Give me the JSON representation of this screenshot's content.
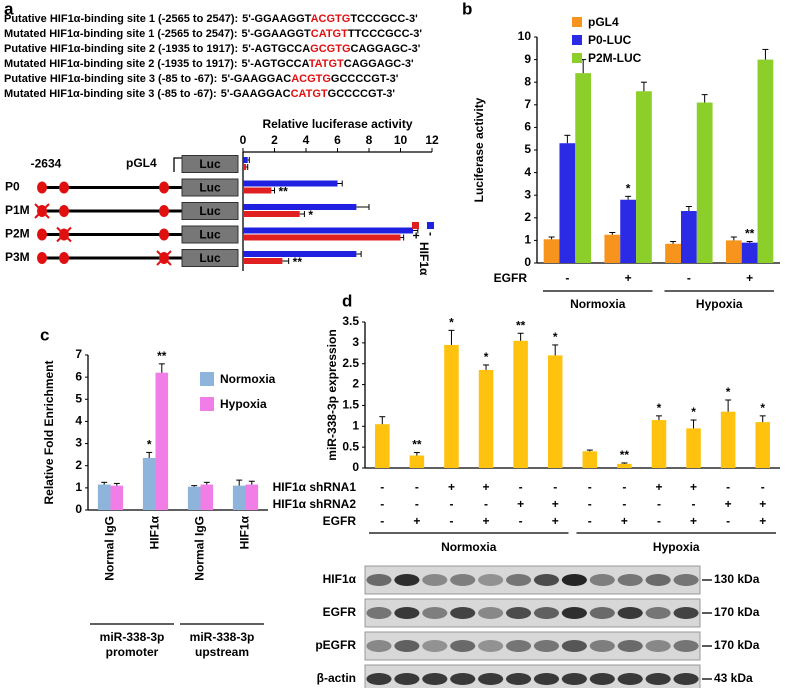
{
  "panel_labels": [
    "a",
    "b",
    "c",
    "d"
  ],
  "panel_a": {
    "sequences": [
      {
        "label": "Putative HIF1α-binding site 1 (-2565 to 2547):",
        "before": "5'-GGAAGGT",
        "site": "ACGTG",
        "after": "TCCCGCC-3'"
      },
      {
        "label": "Mutated HIF1α-binding site 1 (-2565 to 2547):",
        "before": "5'-GGAAGGT",
        "site": "CATGT",
        "after": "TTCCCGCC-3'"
      },
      {
        "label": "Putative HIF1α-binding site 2 (-1935 to 1917):",
        "before": "5'-AGTGCCA",
        "site": "GCGTG",
        "after": "CAGGAGC-3'"
      },
      {
        "label": "Mutated HIF1α-binding site 2 (-1935 to 1917):",
        "before": "5'-AGTGCCA",
        "site": "TATGT",
        "after": "CAGGAGC-3'"
      },
      {
        "label": "Putative HIF1α-binding site 3 (-85 to -67):",
        "before": "5'-GAAGGAC",
        "site": "ACGTG",
        "after": "GCCCCGT-3'"
      },
      {
        "label": "Mutated HIF1α-binding site 3 (-85 to -67):",
        "before": "5'-GAAGGAC",
        "site": "CATGT",
        "after": "GCCCCGT-3'"
      }
    ],
    "start_position": "-2634",
    "reporter": "Luc"
  },
  "chart_data": [
    {
      "type": "hbar",
      "title": "Relative luciferase activity",
      "categories": [
        "pGL4",
        "P0",
        "P1M",
        "P2M",
        "P3M"
      ],
      "legend_title": "HIF1α",
      "series": [
        {
          "name": "-",
          "color": "#2020e0",
          "values": [
            0.3,
            6.0,
            7.2,
            10.8,
            7.2
          ],
          "errors": [
            0.1,
            0.3,
            0.8,
            0.3,
            0.3
          ]
        },
        {
          "name": "+",
          "color": "#e02020",
          "values": [
            0.2,
            1.8,
            3.6,
            10.0,
            2.5
          ],
          "errors": [
            0.1,
            0.2,
            0.3,
            0.2,
            0.4
          ],
          "annotations": [
            null,
            "**",
            "*",
            null,
            "**"
          ]
        }
      ],
      "xlim": [
        0,
        12
      ],
      "xticks": [
        0,
        2,
        4,
        6,
        8,
        10,
        12
      ]
    },
    {
      "type": "bar",
      "ylabel": "Luciferase activity",
      "category_row_label": "EGFR",
      "categories": [
        "-",
        "+",
        "-",
        "+"
      ],
      "groups": [
        "Normoxia",
        "Hypoxia"
      ],
      "series": [
        {
          "name": "pGL4",
          "color": "#f7941d",
          "values": [
            1.05,
            1.25,
            0.85,
            1.0
          ],
          "errors": [
            0.1,
            0.1,
            0.1,
            0.15
          ]
        },
        {
          "name": "P0-LUC",
          "color": "#2b2be6",
          "values": [
            5.3,
            2.8,
            2.3,
            0.9
          ],
          "errors": [
            0.35,
            0.15,
            0.2,
            0.05
          ],
          "annotations": [
            null,
            "*",
            null,
            "**"
          ]
        },
        {
          "name": "P2M-LUC",
          "color": "#8dcf2a",
          "values": [
            8.4,
            7.6,
            7.1,
            9.0
          ],
          "errors": [
            0.6,
            0.4,
            0.35,
            0.45
          ]
        }
      ],
      "ylim": [
        0,
        10
      ],
      "yticks": [
        0,
        1,
        2,
        3,
        4,
        5,
        6,
        7,
        8,
        9,
        10
      ]
    },
    {
      "type": "bar",
      "ylabel": "Relative Fold Enrichment",
      "categories": [
        "Normal IgG",
        "HIF1α",
        "Normal IgG",
        "HIF1α"
      ],
      "groups": [
        [
          "miR-338-3p",
          "promoter"
        ],
        [
          "miR-338-3p",
          "upstream"
        ]
      ],
      "series": [
        {
          "name": "Normoxia",
          "color": "#8fb4dc",
          "values": [
            1.15,
            2.35,
            1.05,
            1.1
          ],
          "errors": [
            0.1,
            0.25,
            0.05,
            0.25
          ],
          "annotations": [
            null,
            "*",
            null,
            null
          ]
        },
        {
          "name": "Hypoxia",
          "color": "#f07ee6",
          "values": [
            1.1,
            6.2,
            1.15,
            1.15
          ],
          "errors": [
            0.1,
            0.4,
            0.1,
            0.15
          ],
          "annotations": [
            null,
            "**",
            null,
            null
          ]
        }
      ],
      "ylim": [
        0,
        7
      ],
      "yticks": [
        0,
        1,
        2,
        3,
        4,
        5,
        6,
        7
      ]
    },
    {
      "type": "bar",
      "ylabel": "miR-338-3p expression",
      "conditions": [
        {
          "name": "HIF1α shRNA1",
          "values": [
            "-",
            "-",
            "+",
            "+",
            "-",
            "-",
            "-",
            "-",
            "+",
            "+",
            "-",
            "-"
          ]
        },
        {
          "name": "HIF1α shRNA2",
          "values": [
            "-",
            "-",
            "-",
            "-",
            "+",
            "+",
            "-",
            "-",
            "-",
            "-",
            "+",
            "+"
          ]
        },
        {
          "name": "EGFR",
          "values": [
            "-",
            "+",
            "-",
            "+",
            "-",
            "+",
            "-",
            "+",
            "-",
            "+",
            "-",
            "+"
          ]
        }
      ],
      "groups": [
        "Normoxia",
        "Hypoxia"
      ],
      "series": [
        {
          "name": "miR-338-3p",
          "color": "#ffc20e",
          "values": [
            1.05,
            0.3,
            2.95,
            2.35,
            3.05,
            2.7,
            0.4,
            0.1,
            1.15,
            0.95,
            1.35,
            1.1
          ],
          "errors": [
            0.18,
            0.07,
            0.35,
            0.12,
            0.18,
            0.25,
            0.03,
            0.02,
            0.1,
            0.2,
            0.28,
            0.15
          ],
          "annotations": [
            null,
            "**",
            "*",
            "*",
            "**",
            "*",
            null,
            "**",
            "*",
            "*",
            "*",
            "*"
          ]
        }
      ],
      "ylim": [
        0,
        3.5
      ],
      "yticks": [
        0,
        0.5,
        1,
        1.5,
        2,
        2.5,
        3,
        3.5
      ]
    }
  ],
  "western_blot": {
    "rows": [
      {
        "name": "HIF1α",
        "size": "130 kDa"
      },
      {
        "name": "EGFR",
        "size": "170 kDa"
      },
      {
        "name": "pEGFR",
        "size": "170 kDa"
      },
      {
        "name": "β-actin",
        "size": "43 kDa"
      }
    ]
  }
}
